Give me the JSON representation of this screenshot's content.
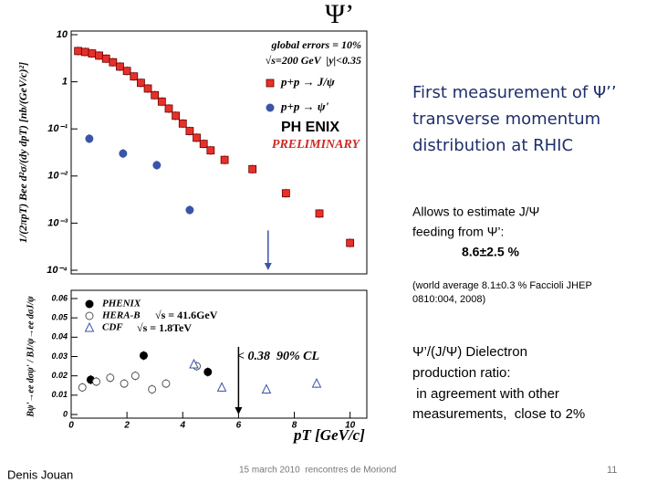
{
  "slide": {
    "title": "Ψ’",
    "headline": [
      "First measurement of Ψ’’",
      "transverse momentum",
      "distribution at RHIC"
    ],
    "feeding": [
      "Allows to estimate J/Ψ",
      "feeding from Ψ’:"
    ],
    "feeding_value": "8.6±2.5 %",
    "world_average": [
      "(world average 8.1±0.3 % Faccioli JHEP",
      "0810:004, 2008)"
    ],
    "ratio_note": [
      "Ψ’/(J/Ψ) Dielectron",
      "production ratio:",
      " in agreement with other",
      "measurements,  close to 2%"
    ],
    "author": "Denis Jouan",
    "event": "15 march 2010  rencontres de Moriond",
    "page": "11"
  },
  "chart_data": [
    {
      "type": "scatter",
      "log_y": true,
      "ylabel": "1/(2πpT) Bee d²σ/(dy dpT)  [nb/(GeV/c)²]",
      "xlim": [
        0,
        10.6
      ],
      "ylim": [
        0.0001,
        10
      ],
      "yticks": [
        {
          "value": 10,
          "label": "10"
        },
        1,
        {
          "value": 0.1,
          "label": "10⁻¹"
        },
        {
          "value": 0.01,
          "label": "10⁻²"
        },
        {
          "value": 0.001,
          "label": "10⁻³"
        },
        {
          "value": 0.0001,
          "label": "10⁻⁴"
        }
      ],
      "annotations": [
        "global errors = 10%",
        "√s=200 GeV  |y|<0.35",
        "PH ENIX",
        "PRELIMINARY"
      ],
      "series": [
        {
          "name": "p+p → J/ψ",
          "color": "#e8302a",
          "marker": "square",
          "x": [
            0.25,
            0.5,
            0.75,
            1.0,
            1.25,
            1.5,
            1.75,
            2.0,
            2.25,
            2.5,
            2.75,
            3.0,
            3.25,
            3.5,
            3.75,
            4.0,
            4.25,
            4.5,
            4.75,
            5.0,
            5.5,
            6.5,
            7.7,
            8.9,
            10.0
          ],
          "values": [
            4.5,
            4.3,
            4.0,
            3.6,
            3.1,
            2.6,
            2.1,
            1.7,
            1.3,
            0.95,
            0.72,
            0.52,
            0.38,
            0.27,
            0.19,
            0.13,
            0.09,
            0.065,
            0.048,
            0.035,
            0.022,
            0.014,
            0.0043,
            0.0016,
            0.00038
          ]
        },
        {
          "name": "p+p → ψ'",
          "color": "#3a55a8",
          "marker": "circle",
          "x": [
            0.65,
            1.86,
            3.07,
            4.25
          ],
          "values": [
            0.062,
            0.03,
            0.017,
            0.0019
          ]
        }
      ],
      "upper_limit": {
        "x": 7.06,
        "value": 0.0007,
        "color": "#3a55a8"
      }
    },
    {
      "type": "scatter",
      "log_y": false,
      "ylabel": "Bψ'→ee dσψ' / BJ/ψ→ee dσJ/ψ",
      "xlabel": "pT [GeV/c]",
      "xlim": [
        0,
        10.6
      ],
      "ylim": [
        0,
        0.06
      ],
      "xticks": [
        0,
        2,
        4,
        6,
        8,
        10
      ],
      "yticks": [
        0,
        0.01,
        0.02,
        0.03,
        0.04,
        0.05,
        0.06
      ],
      "annotations": [
        "√s = 41.6GeV",
        "√s = 1.8TeV",
        "< 0.38  90% CL"
      ],
      "series": [
        {
          "name": "PHENIX",
          "color": "#000000",
          "marker": "circle",
          "x": [
            0.7,
            2.6,
            4.9
          ],
          "values": [
            0.018,
            0.0305,
            0.022
          ]
        },
        {
          "name": "HERA-B",
          "color": "#555555",
          "marker": "open-circle",
          "x": [
            0.4,
            0.9,
            1.4,
            1.9,
            2.3,
            2.9,
            3.4,
            4.5
          ],
          "values": [
            0.014,
            0.017,
            0.019,
            0.016,
            0.02,
            0.013,
            0.016,
            0.025
          ]
        },
        {
          "name": "CDF",
          "color": "#3a55a8",
          "marker": "open-triangle",
          "x": [
            4.4,
            5.4,
            7.0,
            8.8
          ],
          "values": [
            0.026,
            0.014,
            0.013,
            0.016
          ]
        }
      ],
      "upper_limit": {
        "x": 6.0,
        "value": 0.035,
        "color": "#000000"
      }
    }
  ]
}
